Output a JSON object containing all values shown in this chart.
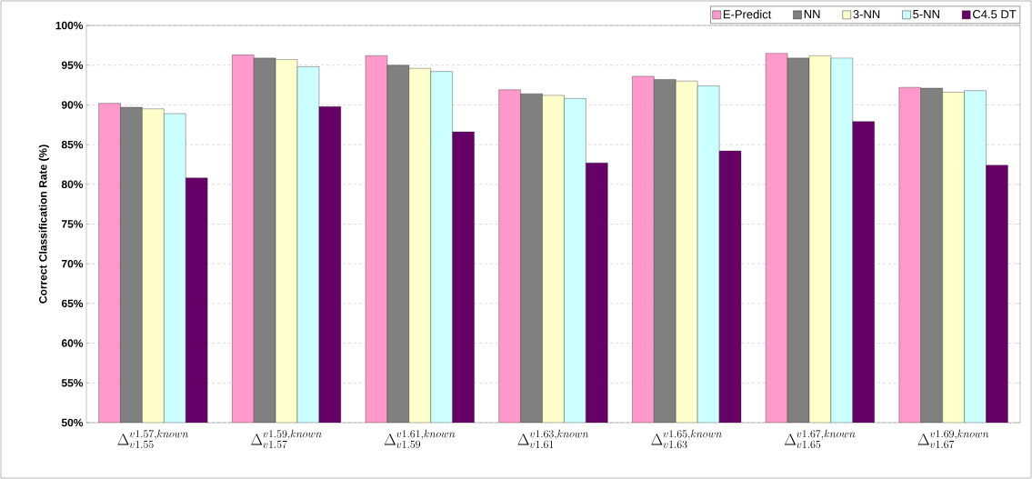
{
  "chart_data": {
    "type": "bar",
    "ylabel": "Correct Classification Rate (%)",
    "categories": [
      "\\Delta^{v1.57,known}_{v1.55}",
      "\\Delta^{v1.59,known}_{v1.57}",
      "\\Delta^{v1.61,known}_{v1.59}",
      "\\Delta^{v1.63,known}_{v1.61}",
      "\\Delta^{v1.65,known}_{v1.63}",
      "\\Delta^{v1.67,known}_{v1.65}",
      "\\Delta^{v1.69,known}_{v1.67}"
    ],
    "series": [
      {
        "name": "E-Predict",
        "color": "#ff99cc",
        "values": [
          90.2,
          96.3,
          96.2,
          91.9,
          93.6,
          96.5,
          92.2
        ]
      },
      {
        "name": "NN",
        "color": "#808080",
        "values": [
          89.7,
          95.9,
          95.0,
          91.4,
          93.2,
          95.9,
          92.1
        ]
      },
      {
        "name": "3-NN",
        "color": "#ffffcc",
        "values": [
          89.5,
          95.7,
          94.6,
          91.2,
          93.0,
          96.2,
          91.6
        ]
      },
      {
        "name": "5-NN",
        "color": "#ccffff",
        "values": [
          88.9,
          94.8,
          94.2,
          90.8,
          92.4,
          95.9,
          91.8
        ]
      },
      {
        "name": "C4.5 DT",
        "color": "#660066",
        "values": [
          80.8,
          89.8,
          86.6,
          82.7,
          84.2,
          87.9,
          82.4
        ]
      }
    ],
    "ylim": [
      50,
      100
    ],
    "yticks": [
      {
        "value": 50,
        "label": "50%"
      },
      {
        "value": 55,
        "label": "55%"
      },
      {
        "value": 60,
        "label": "60%"
      },
      {
        "value": 65,
        "label": "65%"
      },
      {
        "value": 70,
        "label": "70%"
      },
      {
        "value": 75,
        "label": "75%"
      },
      {
        "value": 80,
        "label": "80%"
      },
      {
        "value": 85,
        "label": "85%"
      },
      {
        "value": 90,
        "label": "90%"
      },
      {
        "value": 95,
        "label": "95%"
      },
      {
        "value": 100,
        "label": "100%"
      }
    ],
    "grid": "y",
    "legend": "top right"
  }
}
